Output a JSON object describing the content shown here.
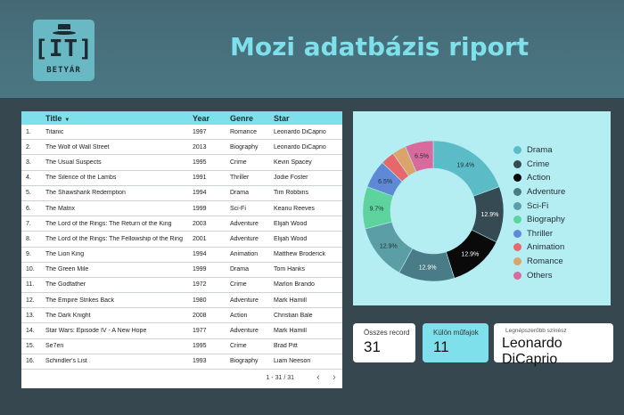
{
  "header": {
    "title": "Mozi adatbázis riport",
    "logo_text": "[IT]",
    "logo_subtext": "BETYÁR"
  },
  "table": {
    "columns": [
      "Title",
      "Year",
      "Genre",
      "Star"
    ],
    "sort_indicator": "▼",
    "rows": [
      [
        "1.",
        "Titanic",
        "1997",
        "Romance",
        "Leonardo DiCaprio"
      ],
      [
        "2.",
        "The Wolf of Wall Street",
        "2013",
        "Biography",
        "Leonardo DiCaprio"
      ],
      [
        "3.",
        "The Usual Suspects",
        "1995",
        "Crime",
        "Kevin Spacey"
      ],
      [
        "4.",
        "The Silence of the Lambs",
        "1991",
        "Thriller",
        "Jodie Foster"
      ],
      [
        "5.",
        "The Shawshank Redemption",
        "1994",
        "Drama",
        "Tim Robbins"
      ],
      [
        "6.",
        "The Matrix",
        "1999",
        "Sci-Fi",
        "Keanu Reeves"
      ],
      [
        "7.",
        "The Lord of the Rings: The Return of the King",
        "2003",
        "Adventure",
        "Elijah Wood"
      ],
      [
        "8.",
        "The Lord of the Rings: The Fellowship of the Ring",
        "2001",
        "Adventure",
        "Elijah Wood"
      ],
      [
        "9.",
        "The Lion King",
        "1994",
        "Animation",
        "Matthew Broderick"
      ],
      [
        "10.",
        "The Green Mile",
        "1999",
        "Drama",
        "Tom Hanks"
      ],
      [
        "11.",
        "The Godfather",
        "1972",
        "Crime",
        "Marlon Brando"
      ],
      [
        "12.",
        "The Empire Strikes Back",
        "1980",
        "Adventure",
        "Mark Hamill"
      ],
      [
        "13.",
        "The Dark Knight",
        "2008",
        "Action",
        "Christian Bale"
      ],
      [
        "14.",
        "Star Wars: Episode IV - A New Hope",
        "1977",
        "Adventure",
        "Mark Hamill"
      ],
      [
        "15.",
        "Se7en",
        "1995",
        "Crime",
        "Brad Pitt"
      ],
      [
        "16.",
        "Schindler's List",
        "1993",
        "Biography",
        "Liam Neeson"
      ]
    ],
    "pagination": "1 - 31 / 31",
    "prev_icon": "‹",
    "next_icon": "›"
  },
  "chart_data": {
    "type": "pie",
    "donut": true,
    "legend_position": "right",
    "slices": [
      {
        "name": "Drama",
        "value": 19.4,
        "label": "19.4%",
        "color": "#5bbcc8"
      },
      {
        "name": "Crime",
        "value": 12.9,
        "label": "12.9%",
        "color": "#364a53"
      },
      {
        "name": "Action",
        "value": 12.9,
        "label": "12.9%",
        "color": "#0a0a0a"
      },
      {
        "name": "Adventure",
        "value": 12.9,
        "label": "12.9%",
        "color": "#4a7c87"
      },
      {
        "name": "Sci-Fi",
        "value": 12.9,
        "label": "12.9%",
        "color": "#5b9ea5"
      },
      {
        "name": "Biography",
        "value": 9.7,
        "label": "9.7%",
        "color": "#5fd39e"
      },
      {
        "name": "Thriller",
        "value": 6.5,
        "label": "6.5%",
        "color": "#5f88d6"
      },
      {
        "name": "Animation",
        "value": 3.2,
        "label": "",
        "color": "#e8676a"
      },
      {
        "name": "Romance",
        "value": 3.2,
        "label": "",
        "color": "#dba46a"
      },
      {
        "name": "Others",
        "value": 6.5,
        "label": "6.5%",
        "color": "#d96a9e"
      }
    ]
  },
  "kpis": {
    "total_records": {
      "label": "Összes record",
      "value": "31"
    },
    "genres": {
      "label": "Külön műfajok",
      "value": "11"
    },
    "top_star": {
      "label": "Legnépszerűbb színész",
      "value": "Leonardo DiCaprio"
    }
  }
}
